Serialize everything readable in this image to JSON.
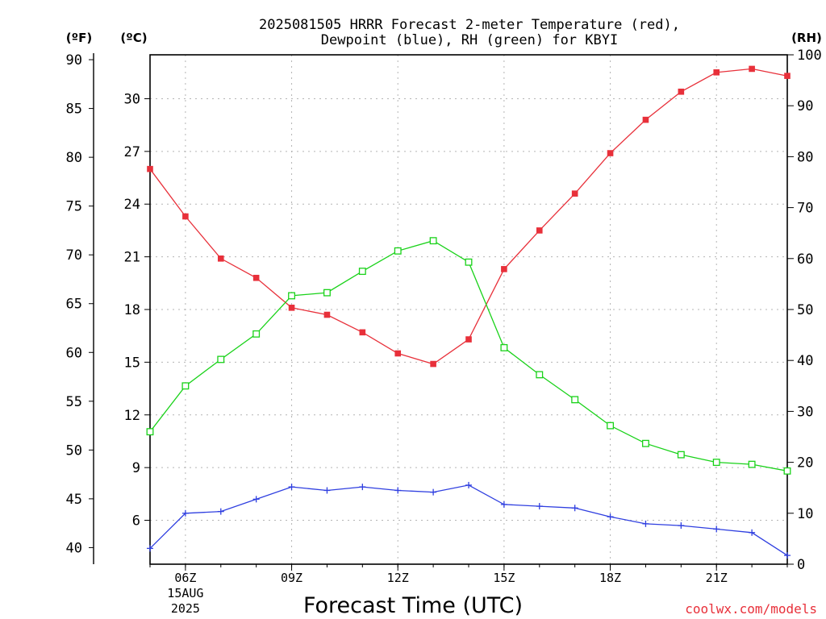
{
  "title_line1": "2025081505 HRRR Forecast 2-meter Temperature (red),",
  "title_line2": "Dewpoint (blue), RH (green) for KBYI",
  "unit_f": "(ºF)",
  "unit_c": "(ºC)",
  "unit_rh": "(RH)",
  "watermark": "coolwx.com/models",
  "chart_data": {
    "type": "line",
    "title": "2025081505 HRRR Forecast 2-meter Temperature (red), Dewpoint (blue), RH (green) for KBYI",
    "xlabel": "Forecast Time (UTC)",
    "x": [
      5,
      6,
      7,
      8,
      9,
      10,
      11,
      12,
      13,
      14,
      15,
      16,
      17,
      18,
      19,
      20,
      21,
      22,
      23
    ],
    "xlim": [
      5,
      23
    ],
    "xticks": [
      {
        "x": 6,
        "label": "06Z",
        "sub1": "15AUG",
        "sub2": "2025"
      },
      {
        "x": 9,
        "label": "09Z"
      },
      {
        "x": 12,
        "label": "12Z"
      },
      {
        "x": 15,
        "label": "15Z"
      },
      {
        "x": 18,
        "label": "18Z"
      },
      {
        "x": 21,
        "label": "21Z"
      }
    ],
    "y_celsius": {
      "lim": [
        3.5,
        32.5
      ],
      "ticks": [
        6,
        9,
        12,
        15,
        18,
        21,
        24,
        27,
        30
      ]
    },
    "y_fahrenheit": {
      "ticks": [
        40,
        45,
        50,
        55,
        60,
        65,
        70,
        75,
        80,
        85,
        90
      ]
    },
    "y_rh": {
      "lim": [
        0,
        100
      ],
      "ticks": [
        0,
        10,
        20,
        30,
        40,
        50,
        60,
        70,
        80,
        90,
        100
      ]
    },
    "grid": true,
    "series": [
      {
        "name": "Temperature",
        "axis": "celsius",
        "color": "#e8303a",
        "marker": "filled-square",
        "values": [
          26.0,
          23.3,
          20.9,
          19.8,
          18.1,
          17.7,
          16.7,
          15.5,
          14.9,
          16.3,
          20.3,
          22.5,
          24.6,
          26.9,
          28.8,
          30.4,
          31.5,
          31.7,
          31.3
        ]
      },
      {
        "name": "Dewpoint",
        "axis": "celsius",
        "color": "#2f3fe0",
        "marker": "plus",
        "values": [
          4.4,
          6.4,
          6.5,
          7.2,
          7.9,
          7.7,
          7.9,
          7.7,
          7.6,
          8.0,
          6.9,
          6.8,
          6.7,
          6.2,
          5.8,
          5.7,
          5.5,
          5.3,
          4.0
        ]
      },
      {
        "name": "RH",
        "axis": "rh",
        "color": "#19d219",
        "marker": "open-square",
        "values": [
          26.0,
          35.0,
          40.2,
          45.2,
          52.7,
          53.3,
          57.5,
          61.5,
          63.5,
          59.3,
          42.5,
          37.2,
          32.3,
          27.2,
          23.7,
          21.5,
          20.0,
          19.6,
          18.3
        ]
      }
    ]
  }
}
